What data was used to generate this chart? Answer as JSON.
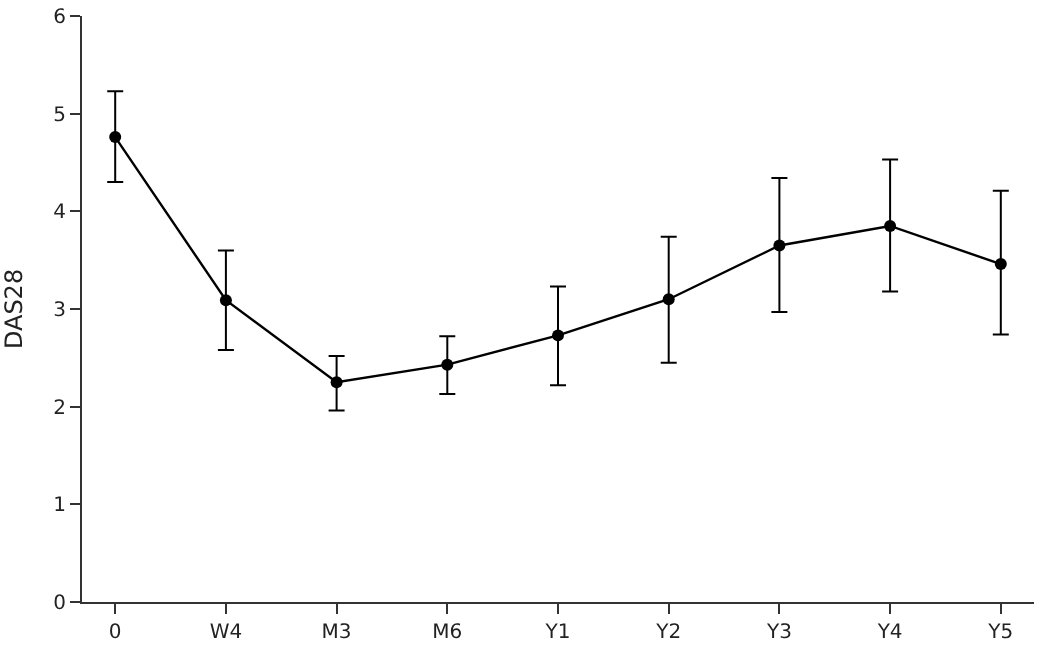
{
  "chart_data": {
    "type": "line",
    "ylabel": "DAS28",
    "categories": [
      "0",
      "W4",
      "M3",
      "M6",
      "Y1",
      "Y2",
      "Y3",
      "Y4",
      "Y5"
    ],
    "ylim": [
      0,
      6
    ],
    "yticks": [
      0,
      1,
      2,
      3,
      4,
      5,
      6
    ],
    "series": [
      {
        "color": "#000000",
        "values": [
          4.76,
          3.09,
          2.25,
          2.43,
          2.73,
          3.1,
          3.65,
          3.85,
          3.46
        ],
        "errors": [
          [
            4.3,
            5.23
          ],
          [
            2.58,
            3.6
          ],
          [
            1.96,
            2.52
          ],
          [
            2.13,
            2.72
          ],
          [
            2.22,
            3.23
          ],
          [
            2.45,
            3.74
          ],
          [
            2.97,
            4.34
          ],
          [
            3.18,
            4.53
          ],
          [
            2.74,
            4.21
          ]
        ]
      }
    ],
    "marker": "circle",
    "line_style": "solid",
    "grid": false,
    "legend": false
  }
}
